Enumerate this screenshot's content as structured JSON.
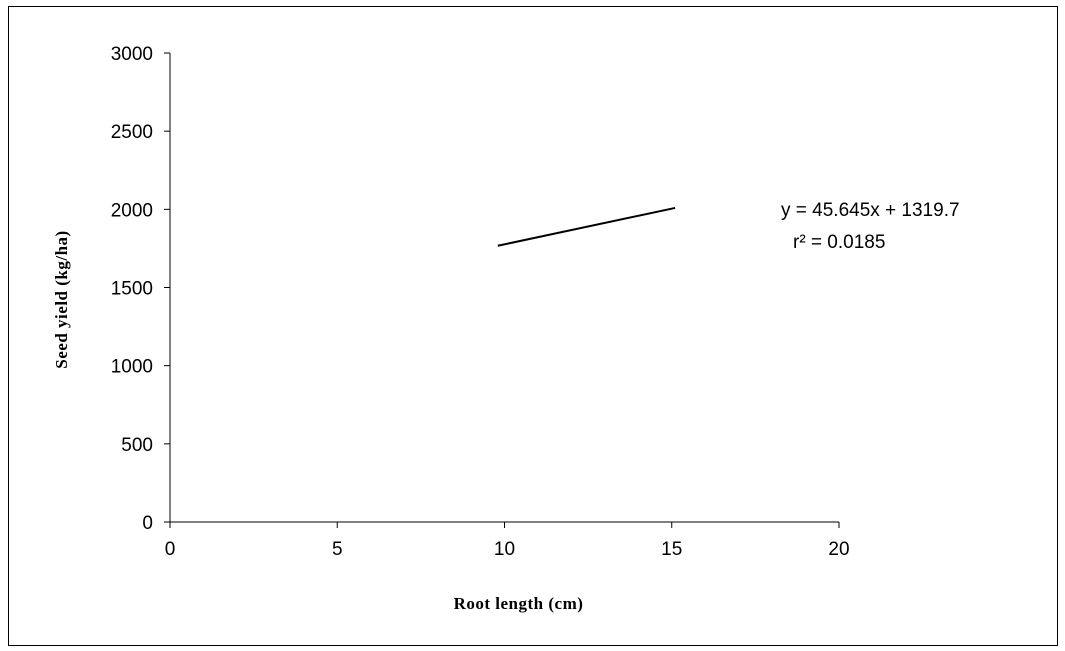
{
  "chart_data": {
    "type": "line",
    "title": "",
    "xlabel": "Root length (cm)",
    "ylabel": "Seed yield (kg/ha)",
    "xlim": [
      0,
      20
    ],
    "ylim": [
      0,
      3000
    ],
    "x_ticks": [
      0,
      5,
      10,
      15,
      20
    ],
    "y_ticks": [
      0,
      500,
      1000,
      1500,
      2000,
      2500,
      3000
    ],
    "grid": false,
    "legend": "none",
    "series": [
      {
        "x": [
          9.8,
          15.1
        ],
        "y": [
          1767,
          2009
        ],
        "color": "#000000"
      }
    ],
    "annotations": [
      "y = 45.645x + 1319.7",
      "r² = 0.0185"
    ]
  }
}
